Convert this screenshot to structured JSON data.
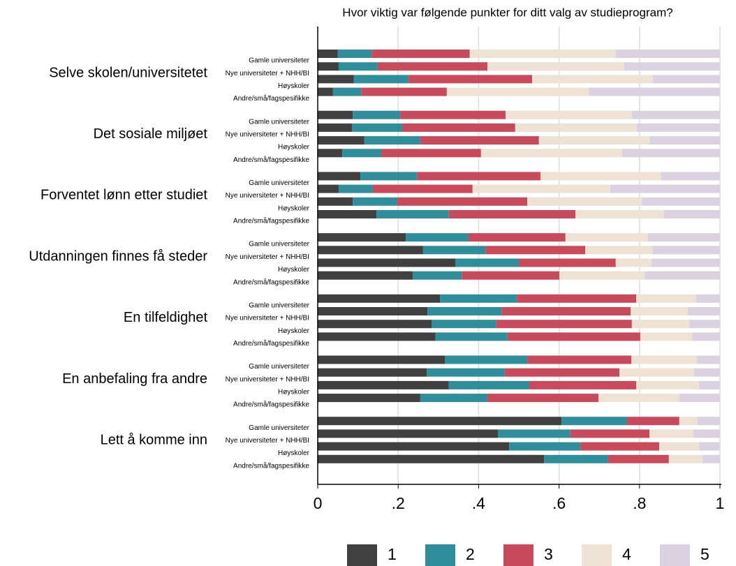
{
  "chart_data": {
    "type": "stacked-hbar",
    "title": "Hvor viktig var følgende punkter for ditt valg av studieprogram?",
    "categories": [
      "Selve skolen/universitetet",
      "Det sosiale miljøet",
      "Forventet lønn etter studiet",
      "Utdanningen finnes få steder",
      "En tilfeldighet",
      "En anbefaling fra andre",
      "Lett å komme inn"
    ],
    "subcategories": [
      "Gamle universiteter",
      "Nye universiteter + NHH/BI",
      "Høyskoler",
      "Andre/små/fagspesifikke"
    ],
    "series": [
      {
        "name": "1",
        "color": "#404040",
        "values": [
          [
            0.05,
            0.052,
            0.09,
            0.038
          ],
          [
            0.087,
            0.085,
            0.116,
            0.061
          ],
          [
            0.106,
            0.052,
            0.087,
            0.146
          ],
          [
            0.219,
            0.262,
            0.342,
            0.236
          ],
          [
            0.304,
            0.273,
            0.283,
            0.293
          ],
          [
            0.316,
            0.271,
            0.326,
            0.255
          ],
          [
            0.606,
            0.448,
            0.476,
            0.563
          ]
        ]
      },
      {
        "name": "2",
        "color": "#2f8e9c",
        "values": [
          [
            0.084,
            0.097,
            0.136,
            0.07
          ],
          [
            0.118,
            0.125,
            0.139,
            0.097
          ],
          [
            0.141,
            0.085,
            0.111,
            0.18
          ],
          [
            0.156,
            0.155,
            0.158,
            0.122
          ],
          [
            0.191,
            0.184,
            0.161,
            0.179
          ],
          [
            0.205,
            0.194,
            0.2,
            0.167
          ],
          [
            0.163,
            0.18,
            0.177,
            0.159
          ]
        ]
      },
      {
        "name": "3",
        "color": "#c94a5a",
        "values": [
          [
            0.244,
            0.273,
            0.307,
            0.213
          ],
          [
            0.262,
            0.281,
            0.295,
            0.248
          ],
          [
            0.307,
            0.248,
            0.323,
            0.315
          ],
          [
            0.241,
            0.248,
            0.241,
            0.243
          ],
          [
            0.297,
            0.321,
            0.337,
            0.33
          ],
          [
            0.259,
            0.285,
            0.266,
            0.276
          ],
          [
            0.13,
            0.197,
            0.196,
            0.151
          ]
        ]
      },
      {
        "name": "4",
        "color": "#ede2d3",
        "values": [
          [
            0.363,
            0.34,
            0.3,
            0.353
          ],
          [
            0.314,
            0.302,
            0.275,
            0.351
          ],
          [
            0.3,
            0.342,
            0.285,
            0.22
          ],
          [
            0.205,
            0.167,
            0.089,
            0.212
          ],
          [
            0.149,
            0.142,
            0.143,
            0.129
          ],
          [
            0.163,
            0.186,
            0.156,
            0.201
          ],
          [
            0.045,
            0.109,
            0.099,
            0.084
          ]
        ]
      },
      {
        "name": "5",
        "color": "#dad2e0",
        "values": [
          [
            0.259,
            0.238,
            0.167,
            0.326
          ],
          [
            0.219,
            0.207,
            0.175,
            0.243
          ],
          [
            0.146,
            0.273,
            0.194,
            0.139
          ],
          [
            0.179,
            0.168,
            0.17,
            0.187
          ],
          [
            0.059,
            0.08,
            0.076,
            0.069
          ],
          [
            0.057,
            0.064,
            0.052,
            0.101
          ],
          [
            0.056,
            0.066,
            0.052,
            0.043
          ]
        ]
      }
    ],
    "xlim": [
      0,
      1
    ],
    "xticks": [
      0,
      {
        "value": 0.2,
        "label": ".2"
      },
      {
        "value": 0.4,
        "label": ".4"
      },
      {
        "value": 0.6,
        "label": ".6"
      },
      {
        "value": 0.8,
        "label": ".8"
      },
      1
    ],
    "grid": true
  }
}
